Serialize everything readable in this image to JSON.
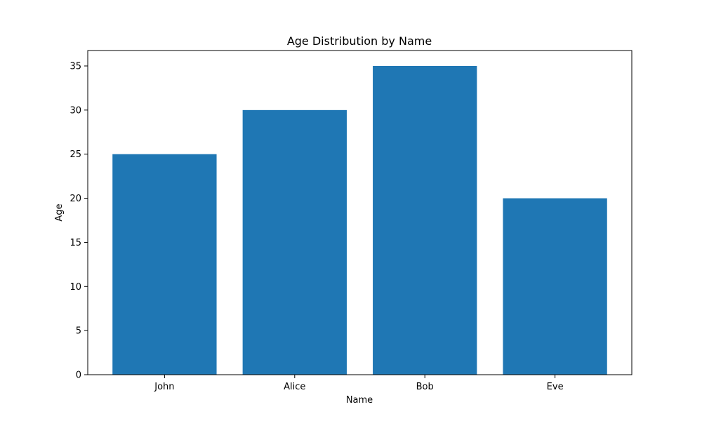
{
  "colors": {
    "bar": "#1f77b4",
    "axis": "#000000",
    "background": "#ffffff"
  },
  "chart_data": {
    "type": "bar",
    "title": "Age Distribution by Name",
    "xlabel": "Name",
    "ylabel": "Age",
    "categories": [
      "John",
      "Alice",
      "Bob",
      "Eve"
    ],
    "values": [
      25,
      30,
      35,
      20
    ],
    "ylim": [
      0,
      36.75
    ],
    "yticks": [
      0,
      5,
      10,
      15,
      20,
      25,
      30,
      35
    ],
    "grid": false,
    "legend": "none"
  }
}
